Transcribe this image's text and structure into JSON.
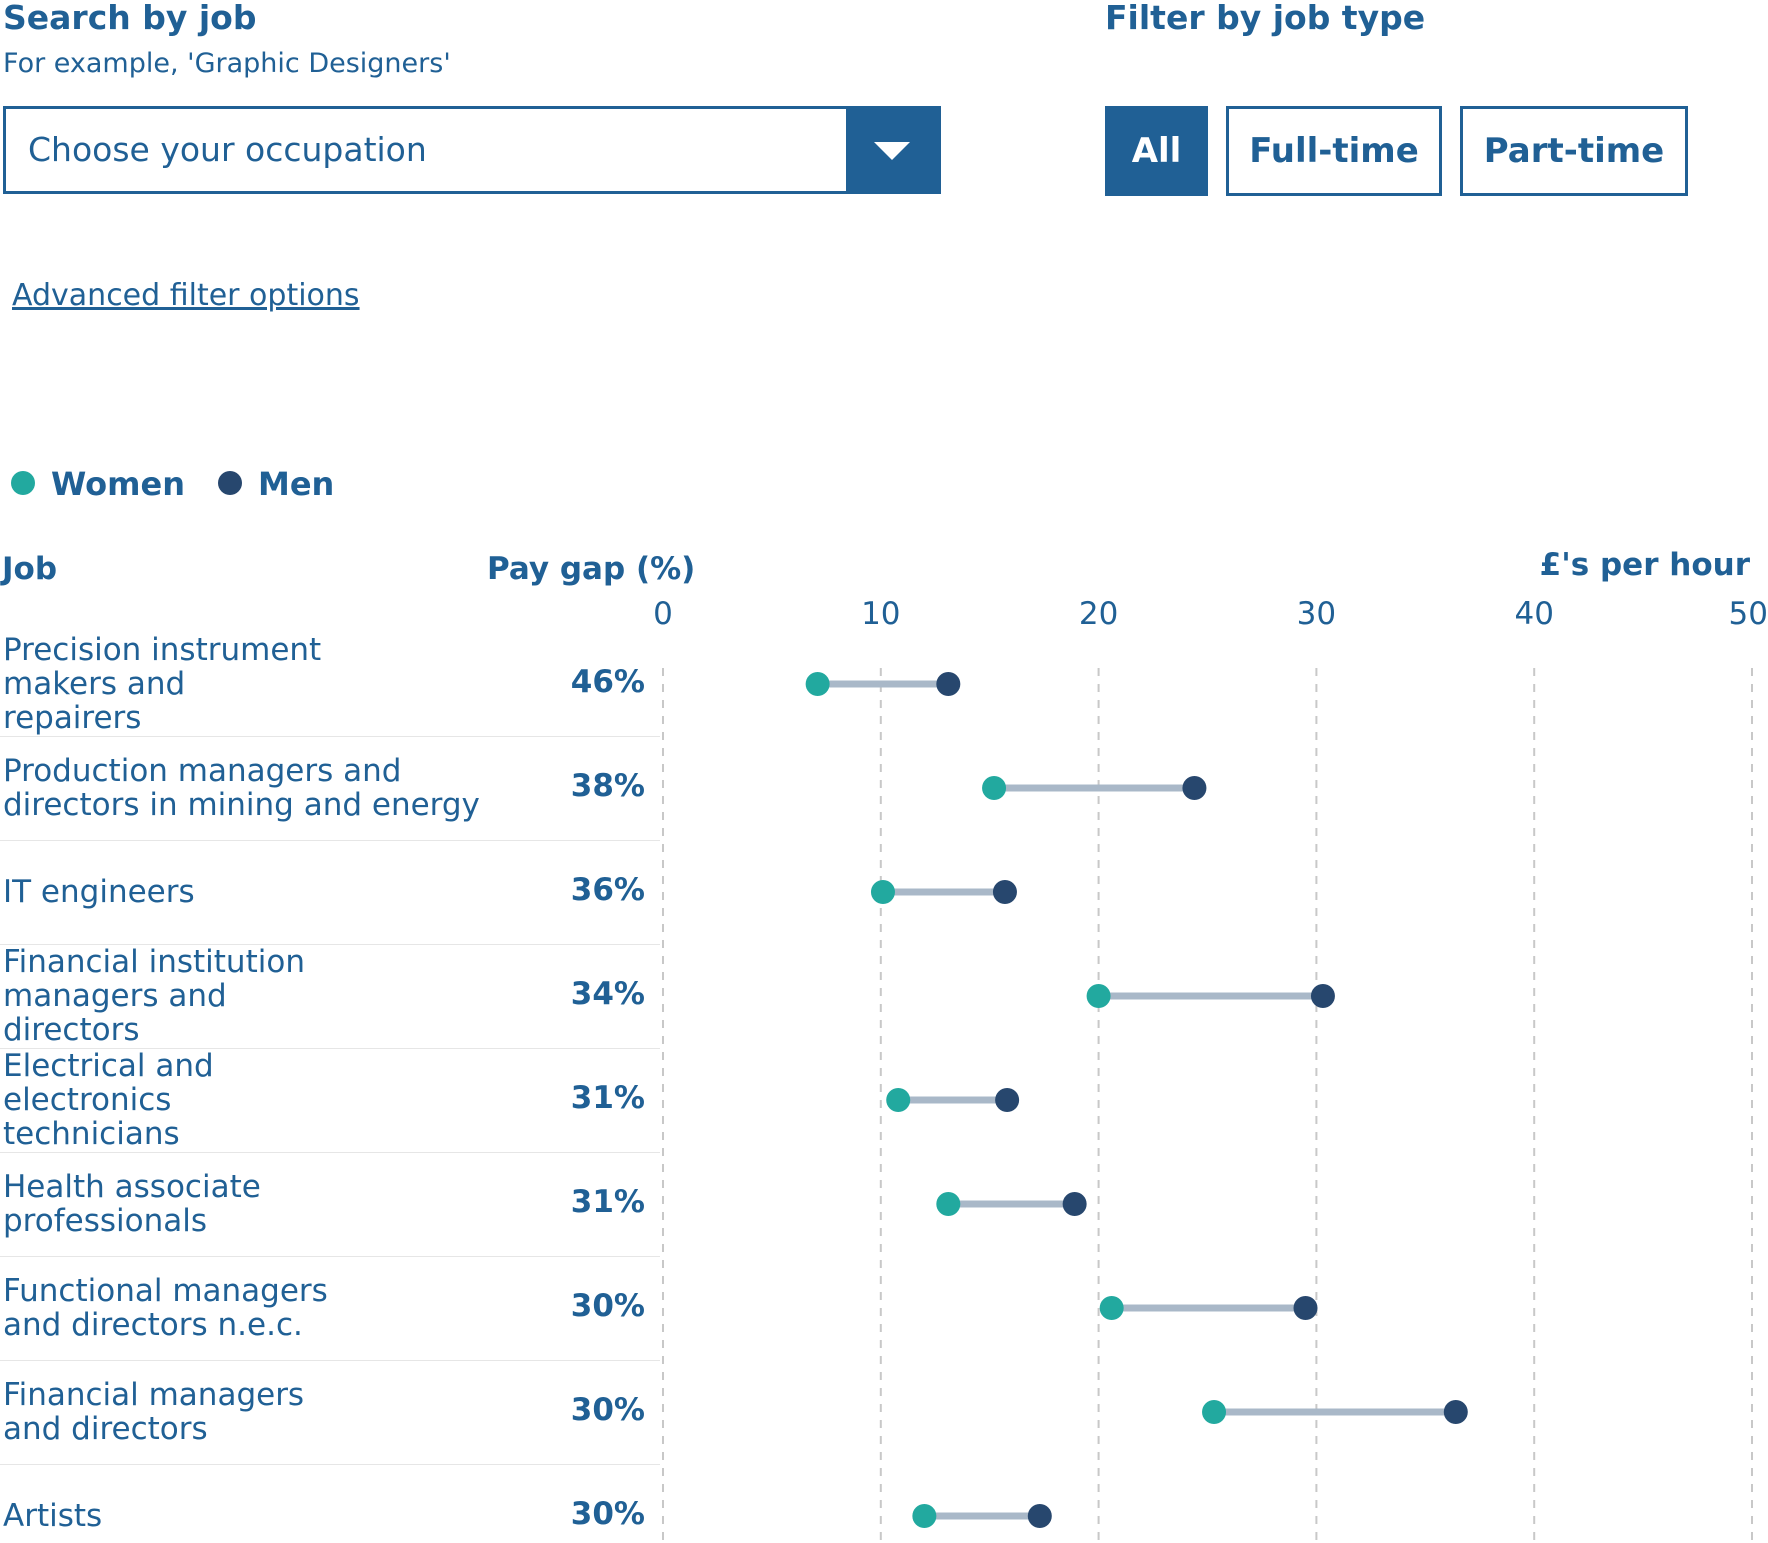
{
  "search": {
    "title": "Search by job",
    "hint": "For example, 'Graphic Designers'",
    "placeholder": "Choose your occupation"
  },
  "filter": {
    "title": "Filter by job type",
    "options": [
      "All",
      "Full-time",
      "Part-time"
    ],
    "selected": "All"
  },
  "advanced_link": "Advanced filter options",
  "legend": [
    {
      "label": "Women",
      "color": "#22a99f"
    },
    {
      "label": "Men",
      "color": "#27476e"
    }
  ],
  "columns": {
    "job": "Job",
    "pay_gap": "Pay gap (%)",
    "axis": "£'s per hour"
  },
  "chart_data": {
    "type": "dumbbell",
    "xlabel": "£'s per hour",
    "xlim": [
      0,
      50
    ],
    "xticks": [
      "0",
      "10",
      "20",
      "30",
      "40",
      "50"
    ],
    "series": [
      {
        "name": "Women",
        "color": "#22a99f"
      },
      {
        "name": "Men",
        "color": "#27476e"
      }
    ],
    "rows": [
      {
        "job": "Precision instrument makers and repairers",
        "gap": "46%",
        "women": 7.1,
        "men": 13.1
      },
      {
        "job": "Production managers and directors in mining and energy",
        "gap": "38%",
        "women": 15.2,
        "men": 24.4
      },
      {
        "job": "IT engineers",
        "gap": "36%",
        "women": 10.1,
        "men": 15.7
      },
      {
        "job": "Financial institution managers and directors",
        "gap": "34%",
        "women": 20.0,
        "men": 30.3
      },
      {
        "job": "Electrical and electronics technicians",
        "gap": "31%",
        "women": 10.8,
        "men": 15.8
      },
      {
        "job": "Health associate professionals",
        "gap": "31%",
        "women": 13.1,
        "men": 18.9
      },
      {
        "job": "Functional managers and directors n.e.c.",
        "gap": "30%",
        "women": 20.6,
        "men": 29.5
      },
      {
        "job": "Financial managers and directors",
        "gap": "30%",
        "women": 25.3,
        "men": 36.4
      },
      {
        "job": "Artists",
        "gap": "30%",
        "women": 12.0,
        "men": 17.3
      }
    ]
  }
}
